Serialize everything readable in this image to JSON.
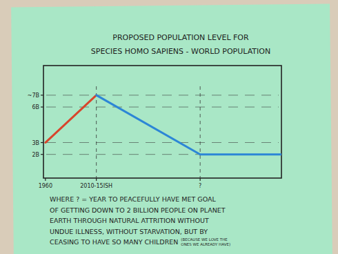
{
  "chart_data": {
    "type": "line",
    "title": "PROPOSED POPULATION LEVEL FOR",
    "subtitle": "SPECIES HOMO SAPIENS - WORLD POPULATION",
    "xlim": [
      1958,
      2201
    ],
    "xticks": [
      {
        "value": 1960,
        "label": "1960"
      },
      {
        "value": 2012,
        "label": "2010-15ISH"
      },
      {
        "value": 2118,
        "label": "?"
      }
    ],
    "ylim": [
      0,
      9.5
    ],
    "yticks": [
      {
        "value": 7,
        "label": "~7B"
      },
      {
        "value": 6,
        "label": "6B"
      },
      {
        "value": 3,
        "label": "3B"
      },
      {
        "value": 2,
        "label": "2B"
      }
    ],
    "grid": true,
    "series": [
      {
        "color": "#d8452c",
        "x": [
          1960,
          2012
        ],
        "values": [
          3,
          7
        ]
      },
      {
        "color": "#2c86d6",
        "x": [
          2012,
          2118,
          2201
        ],
        "values": [
          7,
          2,
          2
        ]
      }
    ],
    "annotations": [
      "WHERE ? = YEAR TO PEACEFULLY HAVE MET GOAL",
      "OF GETTING DOWN TO 2 BILLION PEOPLE ON PLANET",
      "EARTH THROUGH NATURAL ATTRITION WITHOUT",
      "UNDUE ILLNESS, WITHOUT STARVATION, BUT BY",
      "CEASING TO HAVE SO MANY CHILDREN"
    ],
    "aside": [
      "(BECAUSE WE LOVE THE",
      "ONES WE ALREADY HAVE)"
    ]
  }
}
